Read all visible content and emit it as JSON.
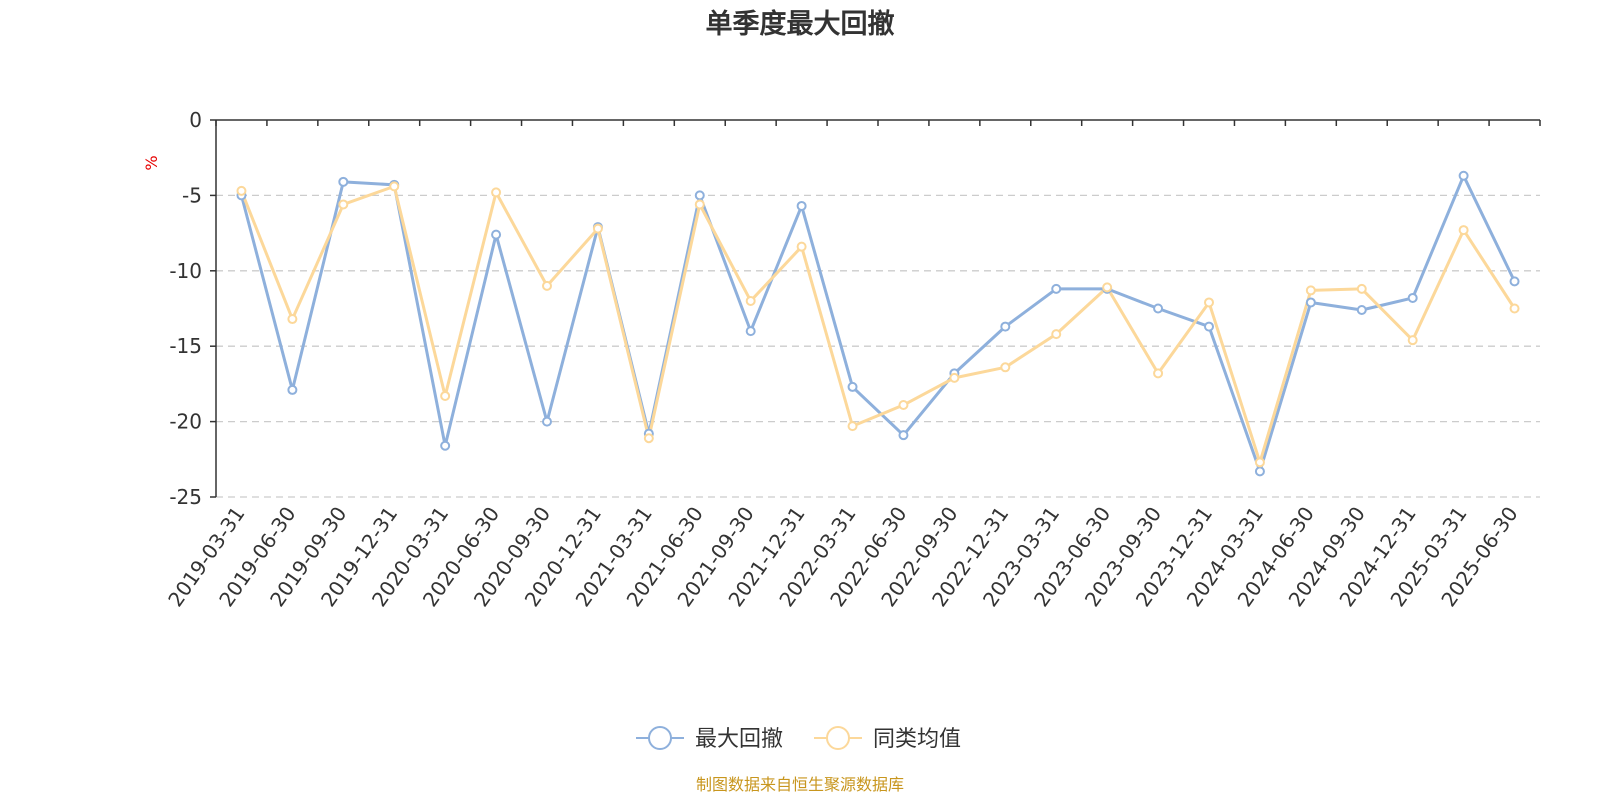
{
  "chart_data": {
    "type": "line",
    "title": "单季度最大回撤",
    "unit": "%",
    "categories": [
      "2019-03-31",
      "2019-06-30",
      "2019-09-30",
      "2019-12-31",
      "2020-03-31",
      "2020-06-30",
      "2020-09-30",
      "2020-12-31",
      "2021-03-31",
      "2021-06-30",
      "2021-09-30",
      "2021-12-31",
      "2022-03-31",
      "2022-06-30",
      "2022-09-30",
      "2022-12-31",
      "2023-03-31",
      "2023-06-30",
      "2023-09-30",
      "2023-12-31",
      "2024-03-31",
      "2024-06-30",
      "2024-09-30",
      "2024-12-31",
      "2025-03-31",
      "2025-06-30"
    ],
    "y_ticks": [
      "0",
      "-5",
      "-10",
      "-15",
      "-20",
      "-25"
    ],
    "ylim": [
      -25,
      0
    ],
    "grid": true,
    "legend_position": "bottom",
    "series": [
      {
        "name": "最大回撤",
        "color": "#8eb0dc",
        "values": [
          -5.0,
          -17.9,
          -4.1,
          -4.3,
          -21.6,
          -7.6,
          -20.0,
          -7.1,
          -20.8,
          -5.0,
          -14.0,
          -5.7,
          -17.7,
          -20.9,
          -16.8,
          -13.7,
          -11.2,
          -11.2,
          -12.5,
          -13.7,
          -23.3,
          -12.1,
          -12.6,
          -11.8,
          -3.7,
          -10.7
        ]
      },
      {
        "name": "同类均值",
        "color": "#fcd89a",
        "values": [
          -4.7,
          -13.2,
          -5.6,
          -4.4,
          -18.3,
          -4.8,
          -11.0,
          -7.2,
          -21.1,
          -5.6,
          -12.0,
          -8.4,
          -20.3,
          -18.9,
          -17.1,
          -16.4,
          -14.2,
          -11.1,
          -16.8,
          -12.1,
          -22.7,
          -11.3,
          -11.2,
          -14.6,
          -7.3,
          -12.5
        ]
      }
    ],
    "source": "制图数据来自恒生聚源数据库"
  }
}
